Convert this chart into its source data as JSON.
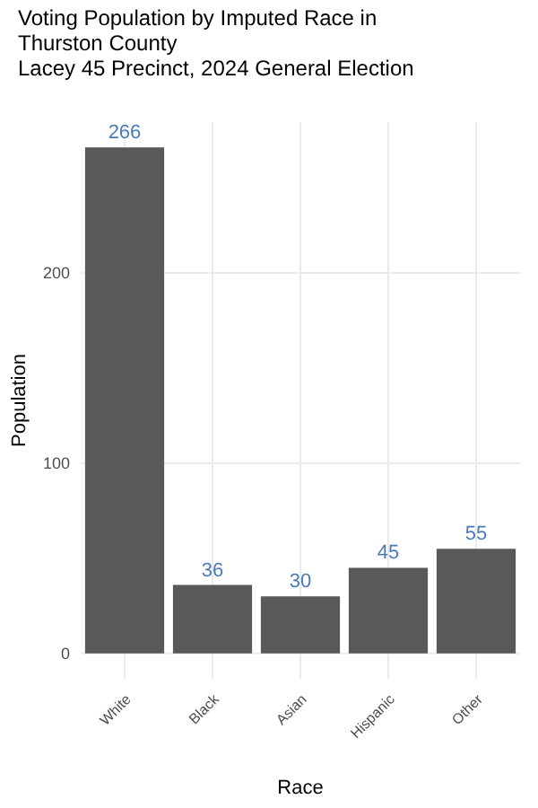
{
  "chart_data": {
    "type": "bar",
    "title": "Voting Population by Imputed Race in Thurston County",
    "subtitle": "Lacey 45 Precinct,  2024 General Election",
    "xlabel": "Race",
    "ylabel": "Population",
    "categories": [
      "White",
      "Black",
      "Asian",
      "Hispanic",
      "Other"
    ],
    "values": [
      266,
      36,
      30,
      45,
      55
    ],
    "color": "#595959",
    "data_labels": true,
    "ylim": [
      -13.3,
      279.3
    ],
    "yticks": [
      0,
      100,
      200
    ],
    "grid": true
  }
}
